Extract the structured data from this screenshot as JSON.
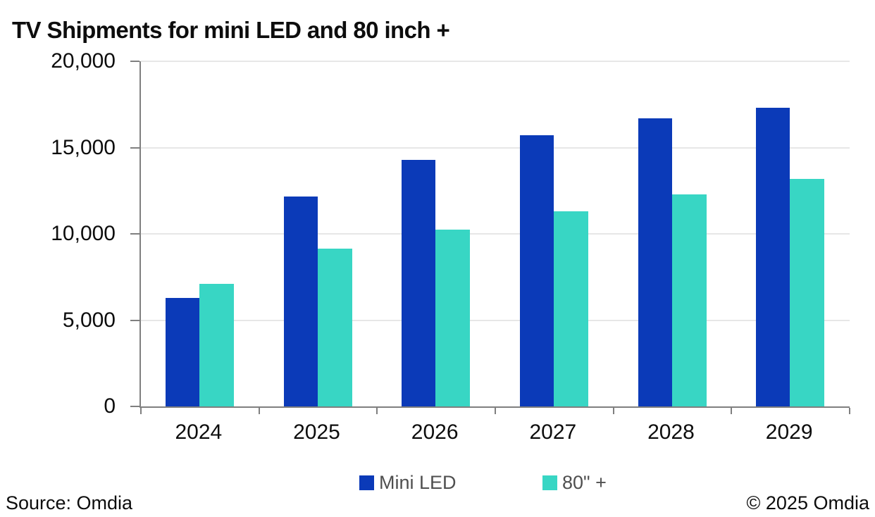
{
  "title": "TV Shipments for mini LED and 80 inch +",
  "source_note": "Source: Omdia",
  "copyright_note": "© 2025 Omdia",
  "colors": {
    "mini_led": "#0b3ab8",
    "eighty_plus": "#38d6c4",
    "axis_line": "#7f7f7f",
    "gridline": "#e7e7e7",
    "legend_text": "#4f4f4f",
    "text": "#0d0d0d"
  },
  "legend": {
    "items": [
      {
        "label": "Mini LED",
        "color": "#0b3ab8"
      },
      {
        "label": "80\" +",
        "color": "#38d6c4"
      }
    ]
  },
  "chart_data": {
    "type": "bar",
    "title": "TV Shipments for mini LED and 80 inch +",
    "categories": [
      "2024",
      "2025",
      "2026",
      "2027",
      "2028",
      "2029"
    ],
    "series": [
      {
        "name": "Mini LED",
        "color": "#0b3ab8",
        "values": [
          6300,
          12150,
          14300,
          15700,
          16700,
          17300
        ]
      },
      {
        "name": "80\" +",
        "color": "#38d6c4",
        "values": [
          7100,
          9150,
          10250,
          11300,
          12300,
          13200
        ]
      }
    ],
    "xlabel": "",
    "ylabel": "",
    "ylim": [
      0,
      20000
    ],
    "y_ticks": [
      0,
      5000,
      10000,
      15000,
      20000
    ],
    "y_tick_labels": [
      "0",
      "5,000",
      "10,000",
      "15,000",
      "20,000"
    ],
    "grid": true,
    "legend_position": "bottom"
  }
}
